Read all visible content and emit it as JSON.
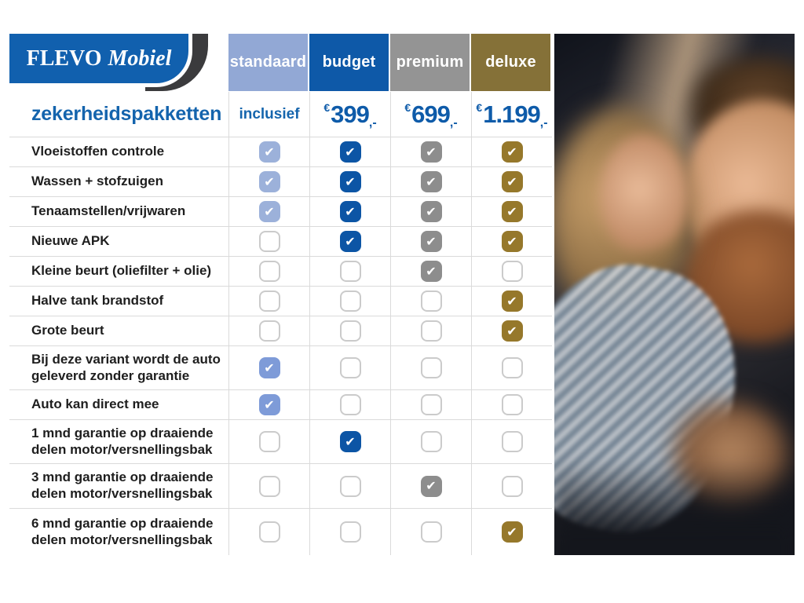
{
  "brand": {
    "name_primary": "FLEVO",
    "name_secondary": "Mobiel"
  },
  "page_title": "zekerheidspakketten",
  "columns": [
    {
      "label": "standaard",
      "header_bg": "#92a8d5",
      "check_bg": "#9cb1da",
      "price_text": "inclusief"
    },
    {
      "label": "budget",
      "header_bg": "#0e59a8",
      "check_bg": "#0c55a5",
      "price_currency": "€",
      "price_amount": "399",
      "price_suffix": ",-"
    },
    {
      "label": "premium",
      "header_bg": "#949494",
      "check_bg": "#8d8d8d",
      "price_currency": "€",
      "price_amount": "699",
      "price_suffix": ",-"
    },
    {
      "label": "deluxe",
      "header_bg": "#857138",
      "check_bg": "#96782b",
      "price_currency": "€",
      "price_amount": "1.199",
      "price_suffix": ",-"
    }
  ],
  "alt_check_bg": "#7e9bd8",
  "rows": [
    {
      "label": "Vloeistoffen controle",
      "checks": [
        true,
        true,
        true,
        true
      ]
    },
    {
      "label": "Wassen + stofzuigen",
      "checks": [
        true,
        true,
        true,
        true
      ]
    },
    {
      "label": "Tenaamstellen/vrijwaren",
      "checks": [
        true,
        true,
        true,
        true
      ]
    },
    {
      "label": "Nieuwe APK",
      "checks": [
        false,
        true,
        true,
        true
      ]
    },
    {
      "label": "Kleine beurt (oliefilter + olie)",
      "checks": [
        false,
        false,
        true,
        false
      ]
    },
    {
      "label": "Halve tank brandstof",
      "checks": [
        false,
        false,
        false,
        true
      ]
    },
    {
      "label": "Grote beurt",
      "checks": [
        false,
        false,
        false,
        true
      ]
    },
    {
      "label": "Bij deze variant wordt de auto geleverd zonder garantie",
      "checks": [
        true,
        false,
        false,
        false
      ]
    },
    {
      "label": "Auto kan direct mee",
      "checks": [
        true,
        false,
        false,
        false
      ]
    },
    {
      "label": "1 mnd garantie op draaiende delen motor/versnellingsbak",
      "checks": [
        false,
        true,
        false,
        false
      ]
    },
    {
      "label": "3 mnd garantie op draaiende delen motor/versnellingsbak",
      "checks": [
        false,
        false,
        true,
        false
      ]
    },
    {
      "label": "6 mnd garantie op draaiende delen motor/versnellingsbak",
      "checks": [
        false,
        false,
        false,
        true
      ]
    }
  ],
  "colors": {
    "title_blue": "#1464ad",
    "price_blue": "#0e5ba9",
    "logo_blue": "#1160ae",
    "logo_dark": "#3b3b3d",
    "grid_line": "#dadada",
    "unchecked_border": "#cbcbcb"
  },
  "photo": {
    "name": "couple-in-car-photo"
  }
}
